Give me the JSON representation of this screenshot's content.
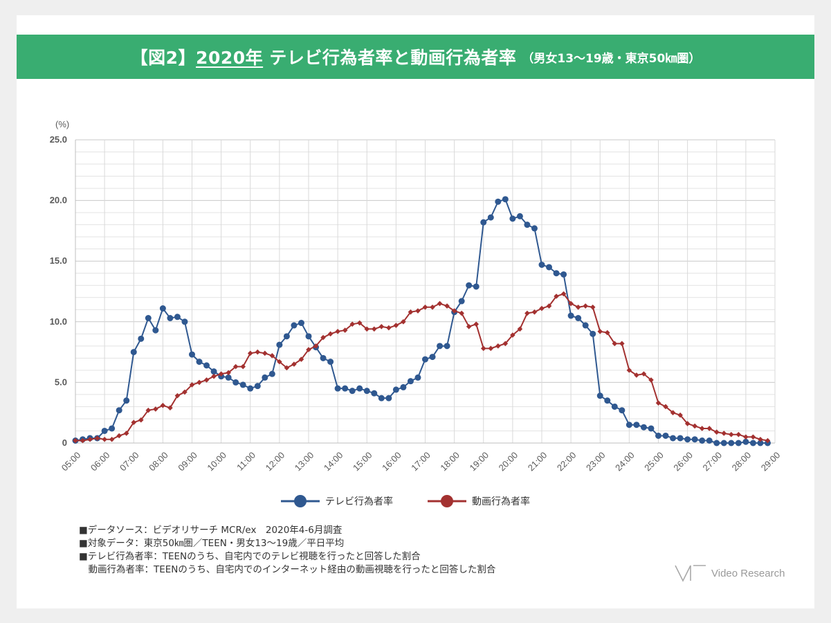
{
  "header": {
    "bracket_label": "【図2】",
    "year": "2020年",
    "title": " テレビ行為者率と動画行為者率",
    "subtitle": "（男女13〜19歳・東京50㎞圏）",
    "color": "#39ad71"
  },
  "chart_data": {
    "type": "line",
    "yunit": "(%)",
    "ylim": [
      0,
      25
    ],
    "yticks": [
      0,
      5,
      10,
      15,
      20,
      25
    ],
    "ytick_labels": [
      "0",
      "5.0",
      "10.0",
      "15.0",
      "20.0",
      "25.0"
    ],
    "xlim": [
      5,
      29
    ],
    "xtick_labels": [
      "05:00",
      "06:00",
      "07:00",
      "08:00",
      "09:00",
      "10:00",
      "11:00",
      "12:00",
      "13:00",
      "14:00",
      "15:00",
      "16:00",
      "17:00",
      "18:00",
      "19:00",
      "20:00",
      "21:00",
      "22:00",
      "23:00",
      "24:00",
      "25:00",
      "26:00",
      "27:00",
      "28:00",
      "29:00"
    ],
    "grid": true,
    "legend_position": "bottom-center",
    "x_start_hour": 5,
    "x_step_hours": 0.25,
    "series": [
      {
        "name": "テレビ行為者率",
        "color": "#2f5890",
        "marker": "circle",
        "values": [
          0.2,
          0.3,
          0.4,
          0.4,
          1.0,
          1.2,
          2.7,
          3.5,
          7.5,
          8.6,
          10.3,
          9.3,
          11.1,
          10.3,
          10.4,
          10.0,
          7.3,
          6.7,
          6.4,
          5.9,
          5.5,
          5.4,
          5.0,
          4.8,
          4.5,
          4.7,
          5.4,
          5.7,
          8.1,
          8.8,
          9.7,
          9.9,
          8.8,
          7.9,
          7.0,
          6.7,
          4.5,
          4.5,
          4.3,
          4.5,
          4.3,
          4.1,
          3.7,
          3.7,
          4.4,
          4.6,
          5.1,
          5.4,
          6.9,
          7.1,
          8.0,
          8.0,
          10.8,
          11.7,
          13.0,
          12.9,
          18.2,
          18.6,
          19.9,
          20.1,
          18.5,
          18.7,
          18.0,
          17.7,
          14.7,
          14.5,
          14.0,
          13.9,
          10.5,
          10.3,
          9.7,
          9.0,
          3.9,
          3.5,
          3.0,
          2.7,
          1.5,
          1.5,
          1.3,
          1.2,
          0.6,
          0.6,
          0.4,
          0.4,
          0.3,
          0.3,
          0.2,
          0.2,
          0.0,
          0.0,
          0.0,
          0.0,
          0.1,
          0.0,
          0.0,
          0.0
        ]
      },
      {
        "name": "動画行為者率",
        "color": "#a33130",
        "marker": "diamond",
        "values": [
          0.2,
          0.2,
          0.3,
          0.4,
          0.3,
          0.3,
          0.6,
          0.8,
          1.7,
          1.9,
          2.7,
          2.8,
          3.1,
          2.9,
          3.9,
          4.2,
          4.8,
          5.0,
          5.2,
          5.5,
          5.7,
          5.8,
          6.3,
          6.3,
          7.4,
          7.5,
          7.4,
          7.2,
          6.7,
          6.2,
          6.5,
          6.9,
          7.7,
          8.0,
          8.7,
          9.0,
          9.2,
          9.3,
          9.8,
          9.9,
          9.4,
          9.4,
          9.6,
          9.5,
          9.7,
          10.0,
          10.8,
          10.9,
          11.2,
          11.2,
          11.5,
          11.3,
          10.9,
          10.7,
          9.6,
          9.8,
          7.8,
          7.8,
          8.0,
          8.2,
          8.9,
          9.4,
          10.7,
          10.8,
          11.1,
          11.3,
          12.1,
          12.3,
          11.5,
          11.2,
          11.3,
          11.2,
          9.2,
          9.1,
          8.2,
          8.2,
          6.0,
          5.6,
          5.7,
          5.2,
          3.3,
          3.0,
          2.5,
          2.3,
          1.6,
          1.4,
          1.2,
          1.2,
          0.9,
          0.8,
          0.7,
          0.7,
          0.5,
          0.5,
          0.3,
          0.2
        ]
      }
    ]
  },
  "notes": [
    "■データソース：ビデオリサーチ MCR/ex　2020年4-6月調査",
    "■対象データ：東京50㎞圏／TEEN・男女13〜19歳／平日平均",
    "■テレビ行為者率：TEENのうち、自宅内でのテレビ視聴を行ったと回答した割合",
    "　動画行為者率：TEENのうち、自宅内でのインターネット経由の動画視聴を行ったと回答した割合"
  ],
  "logo": {
    "text": "Video Research"
  }
}
